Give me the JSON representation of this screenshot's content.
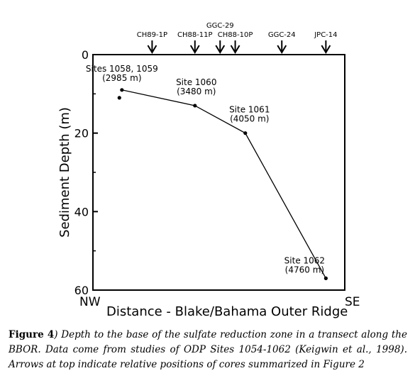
{
  "chart_data": {
    "type": "line",
    "title": "",
    "xlabel": "Distance - Blake/Bahama Outer Ridge",
    "ylabel": "Sediment Depth (m)",
    "x_left_label": "NW",
    "x_right_label": "SE",
    "xlim": [
      0,
      100
    ],
    "ylim": [
      0,
      60
    ],
    "y_inverted": true,
    "yticks": [
      0,
      20,
      40,
      60
    ],
    "grid": false,
    "series": [
      {
        "values": [
          {
            "x": 11.5,
            "y": 9
          },
          {
            "x": 40.5,
            "y": 13
          },
          {
            "x": 60.5,
            "y": 20
          },
          {
            "x": 92.5,
            "y": 57
          }
        ]
      }
    ],
    "extra_points": [
      {
        "x": 10.5,
        "y": 11
      }
    ],
    "annotations": [
      {
        "lines": [
          "Sites 1058, 1059",
          "(2985 m)"
        ],
        "x": 11.5,
        "y": 9
      },
      {
        "lines": [
          "Site 1060",
          "(3480 m)"
        ],
        "x": 40.5,
        "y": 13
      },
      {
        "lines": [
          "Site 1061",
          "(4050 m)"
        ],
        "x": 60.5,
        "y": 20
      },
      {
        "lines": [
          "Site 1062",
          "(4760 m)"
        ],
        "x": 92.5,
        "y": 57
      }
    ],
    "core_markers": [
      {
        "label": "CH89-1P",
        "x": 23.5
      },
      {
        "label": "CH88-11P",
        "x": 40.5
      },
      {
        "label": "GGC-29",
        "x": 50.5
      },
      {
        "label": "CH88-10P",
        "x": 56.5
      },
      {
        "label": "GGC-24",
        "x": 75
      },
      {
        "label": "JPC-14",
        "x": 92.5
      }
    ]
  },
  "caption": {
    "figure_label": "Figure 4",
    "text": ") Depth to the base of the sulfate reduction zone in a transect along the BBOR. Data come from studies of ODP Sites 1054-1062 (Keigwin et al., 1998). Arrows at top indicate relative positions of cores summarized in Figure 2"
  }
}
